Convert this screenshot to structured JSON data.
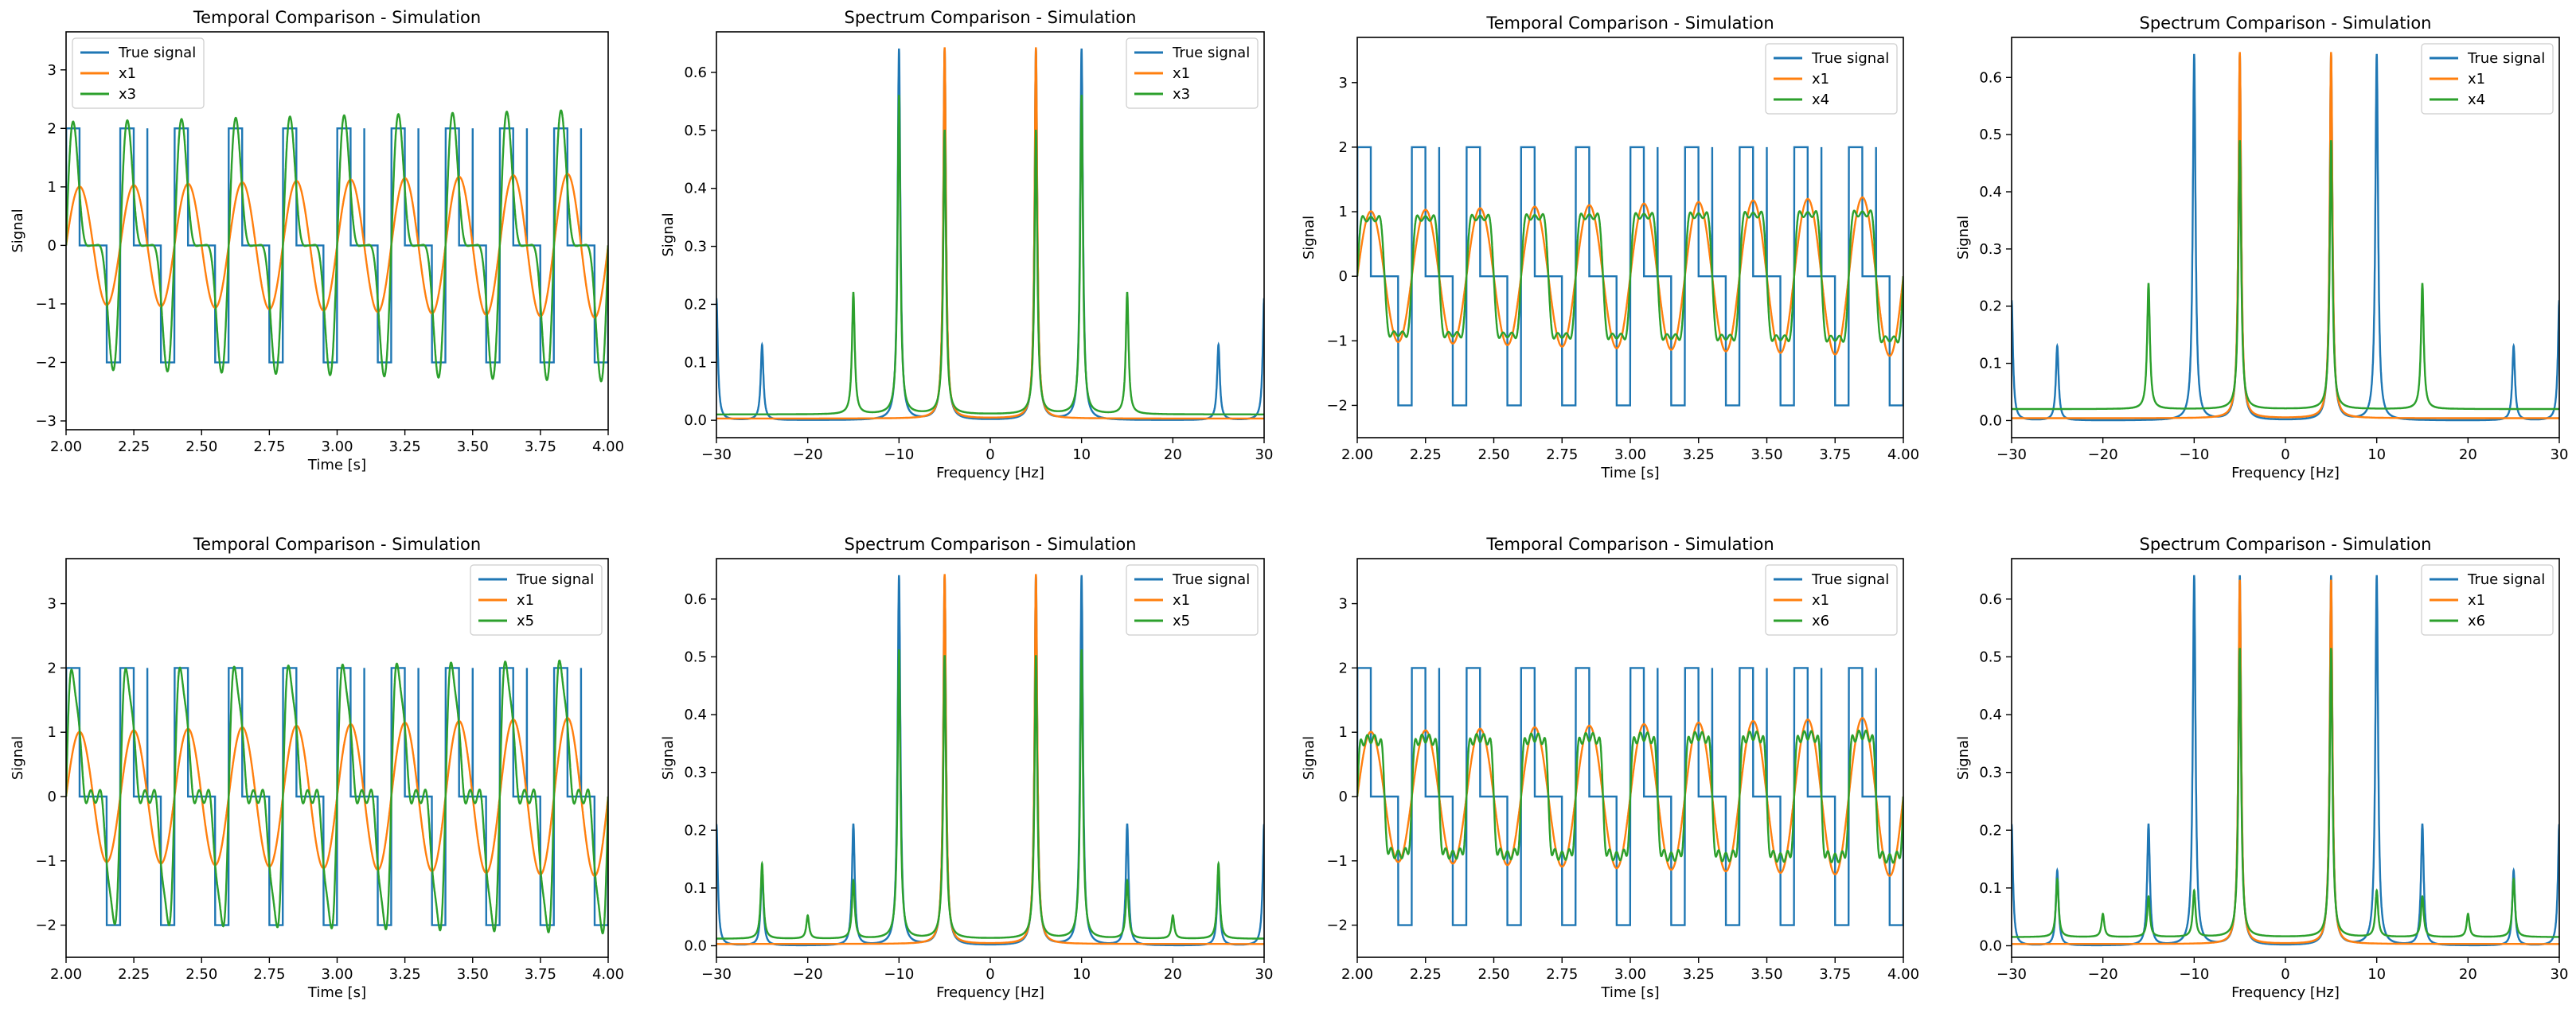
{
  "colors": {
    "true_signal": "#1f77b4",
    "x1": "#ff7f0e",
    "xn": "#2ca02c",
    "axis": "#000000"
  },
  "chart_data": [
    {
      "kind": "temporal",
      "type": "line",
      "title": "Temporal Comparison - Simulation",
      "xlabel": "Time [s]",
      "ylabel": "Signal",
      "xlim": [
        2.0,
        4.0
      ],
      "ylim": [
        -3.15,
        3.65
      ],
      "xticks": [
        "2.00",
        "2.25",
        "2.50",
        "2.75",
        "3.00",
        "3.25",
        "3.50",
        "3.75",
        "4.00"
      ],
      "yticks": [
        "−3",
        "−2",
        "−1",
        "0",
        "1",
        "2",
        "3"
      ],
      "legend": [
        "True signal",
        "x1",
        "x3"
      ],
      "legend_loc": "upper left",
      "series": [
        {
          "name": "True signal",
          "model": "stair",
          "freqs_hz": [
            5,
            10
          ],
          "amplitude": 2
        },
        {
          "name": "x1",
          "model": "harmonics",
          "freqs_hz": [
            5
          ],
          "amps": [
            1.0
          ],
          "growth_per_s": 0.12
        },
        {
          "name": "x3",
          "model": "harmonics",
          "freqs_hz": [
            5,
            10,
            15
          ],
          "amps": [
            1.2,
            1.05,
            0.3
          ],
          "growth_per_s": 0.05
        }
      ]
    },
    {
      "kind": "spectrum",
      "type": "line",
      "title": "Spectrum Comparison - Simulation",
      "xlabel": "Frequency [Hz]",
      "ylabel": "Signal",
      "xlim": [
        -30,
        30
      ],
      "ylim": [
        -0.03,
        0.67
      ],
      "xticks": [
        "−30",
        "−20",
        "−10",
        "0",
        "10",
        "20",
        "30"
      ],
      "yticks": [
        "0.0",
        "0.1",
        "0.2",
        "0.3",
        "0.4",
        "0.5",
        "0.6"
      ],
      "legend": [
        "True signal",
        "x1",
        "x3"
      ],
      "legend_loc": "upper right",
      "series": [
        {
          "name": "True signal",
          "peaks": [
            [
              -30,
              0.21
            ],
            [
              -25,
              0.13
            ],
            [
              -10,
              0.64
            ],
            [
              -5,
              0.64
            ],
            [
              5,
              0.64
            ],
            [
              10,
              0.64
            ],
            [
              25,
              0.13
            ],
            [
              30,
              0.21
            ]
          ],
          "baseline": 0.0
        },
        {
          "name": "x1",
          "peaks": [
            [
              -5,
              0.64
            ],
            [
              5,
              0.64
            ]
          ],
          "baseline": 0.003
        },
        {
          "name": "x3",
          "peaks": [
            [
              -15,
              0.21
            ],
            [
              -10,
              0.55
            ],
            [
              -5,
              0.49
            ],
            [
              5,
              0.49
            ],
            [
              10,
              0.55
            ],
            [
              15,
              0.21
            ]
          ],
          "baseline": 0.01
        }
      ]
    },
    {
      "kind": "temporal",
      "type": "line",
      "title": "Temporal Comparison - Simulation",
      "xlabel": "Time [s]",
      "ylabel": "Signal",
      "xlim": [
        2.0,
        4.0
      ],
      "ylim": [
        -2.5,
        3.7
      ],
      "xticks": [
        "2.00",
        "2.25",
        "2.50",
        "2.75",
        "3.00",
        "3.25",
        "3.50",
        "3.75",
        "4.00"
      ],
      "yticks": [
        "−2",
        "−1",
        "0",
        "1",
        "2",
        "3"
      ],
      "legend": [
        "True signal",
        "x1",
        "x4"
      ],
      "legend_loc": "upper right",
      "series": [
        {
          "name": "True signal",
          "model": "stair",
          "freqs_hz": [
            5,
            10
          ],
          "amplitude": 2
        },
        {
          "name": "x1",
          "model": "harmonics",
          "freqs_hz": [
            5
          ],
          "amps": [
            1.0
          ],
          "growth_per_s": 0.12
        },
        {
          "name": "x4",
          "model": "harmonics",
          "freqs_hz": [
            5,
            15,
            25
          ],
          "amps": [
            1.1,
            0.3,
            0.12
          ],
          "growth_per_s": 0.05
        }
      ]
    },
    {
      "kind": "spectrum",
      "type": "line",
      "title": "Spectrum Comparison - Simulation",
      "xlabel": "Frequency [Hz]",
      "ylabel": "Signal",
      "xlim": [
        -30,
        30
      ],
      "ylim": [
        -0.03,
        0.67
      ],
      "xticks": [
        "−30",
        "−20",
        "−10",
        "0",
        "10",
        "20",
        "30"
      ],
      "yticks": [
        "0.0",
        "0.1",
        "0.2",
        "0.3",
        "0.4",
        "0.5",
        "0.6"
      ],
      "legend": [
        "True signal",
        "x1",
        "x4"
      ],
      "legend_loc": "upper right",
      "series": [
        {
          "name": "True signal",
          "peaks": [
            [
              -30,
              0.21
            ],
            [
              -25,
              0.13
            ],
            [
              -10,
              0.64
            ],
            [
              -5,
              0.64
            ],
            [
              5,
              0.64
            ],
            [
              10,
              0.64
            ],
            [
              25,
              0.13
            ],
            [
              30,
              0.21
            ]
          ],
          "baseline": 0.0
        },
        {
          "name": "x1",
          "peaks": [
            [
              -5,
              0.64
            ],
            [
              5,
              0.64
            ]
          ],
          "baseline": 0.004
        },
        {
          "name": "x4",
          "peaks": [
            [
              -15,
              0.22
            ],
            [
              -5,
              0.47
            ],
            [
              5,
              0.47
            ],
            [
              15,
              0.22
            ]
          ],
          "baseline": 0.02
        }
      ]
    },
    {
      "kind": "temporal",
      "type": "line",
      "title": "Temporal Comparison - Simulation",
      "xlabel": "Time [s]",
      "ylabel": "Signal",
      "xlim": [
        2.0,
        4.0
      ],
      "ylim": [
        -2.5,
        3.7
      ],
      "xticks": [
        "2.00",
        "2.25",
        "2.50",
        "2.75",
        "3.00",
        "3.25",
        "3.50",
        "3.75",
        "4.00"
      ],
      "yticks": [
        "−2",
        "−1",
        "0",
        "1",
        "2",
        "3"
      ],
      "legend": [
        "True signal",
        "x1",
        "x5"
      ],
      "legend_loc": "upper right",
      "series": [
        {
          "name": "True signal",
          "model": "stair",
          "freqs_hz": [
            5,
            10
          ],
          "amplitude": 2
        },
        {
          "name": "x1",
          "model": "harmonics",
          "freqs_hz": [
            5
          ],
          "amps": [
            1.0
          ],
          "growth_per_s": 0.12
        },
        {
          "name": "x5",
          "model": "harmonics",
          "freqs_hz": [
            5,
            10,
            15,
            20,
            25
          ],
          "amps": [
            1.15,
            1.0,
            0.3,
            0.1,
            0.18
          ],
          "growth_per_s": 0.04
        }
      ]
    },
    {
      "kind": "spectrum",
      "type": "line",
      "title": "Spectrum Comparison - Simulation",
      "xlabel": "Frequency [Hz]",
      "ylabel": "Signal",
      "xlim": [
        -30,
        30
      ],
      "ylim": [
        -0.02,
        0.67
      ],
      "xticks": [
        "−30",
        "−20",
        "−10",
        "0",
        "10",
        "20",
        "30"
      ],
      "yticks": [
        "0.0",
        "0.1",
        "0.2",
        "0.3",
        "0.4",
        "0.5",
        "0.6"
      ],
      "legend": [
        "True signal",
        "x1",
        "x5"
      ],
      "legend_loc": "upper right",
      "series": [
        {
          "name": "True signal",
          "peaks": [
            [
              -30,
              0.21
            ],
            [
              -25,
              0.13
            ],
            [
              -15,
              0.21
            ],
            [
              -10,
              0.64
            ],
            [
              -5,
              0.64
            ],
            [
              5,
              0.64
            ],
            [
              10,
              0.64
            ],
            [
              15,
              0.21
            ],
            [
              25,
              0.13
            ],
            [
              30,
              0.21
            ]
          ],
          "baseline": 0.0
        },
        {
          "name": "x1",
          "peaks": [
            [
              -5,
              0.64
            ],
            [
              5,
              0.64
            ]
          ],
          "baseline": 0.003
        },
        {
          "name": "x5",
          "peaks": [
            [
              -25,
              0.13
            ],
            [
              -20,
              0.04
            ],
            [
              -15,
              0.1
            ],
            [
              -10,
              0.5
            ],
            [
              -5,
              0.49
            ],
            [
              5,
              0.49
            ],
            [
              10,
              0.5
            ],
            [
              15,
              0.1
            ],
            [
              20,
              0.04
            ],
            [
              25,
              0.13
            ]
          ],
          "baseline": 0.012
        }
      ]
    },
    {
      "kind": "temporal",
      "type": "line",
      "title": "Temporal Comparison - Simulation",
      "xlabel": "Time [s]",
      "ylabel": "Signal",
      "xlim": [
        2.0,
        4.0
      ],
      "ylim": [
        -2.5,
        3.7
      ],
      "xticks": [
        "2.00",
        "2.25",
        "2.50",
        "2.75",
        "3.00",
        "3.25",
        "3.50",
        "3.75",
        "4.00"
      ],
      "yticks": [
        "−2",
        "−1",
        "0",
        "1",
        "2",
        "3"
      ],
      "legend": [
        "True signal",
        "x1",
        "x6"
      ],
      "legend_loc": "upper right",
      "series": [
        {
          "name": "True signal",
          "model": "stair",
          "freqs_hz": [
            5,
            10
          ],
          "amplitude": 2
        },
        {
          "name": "x1",
          "model": "harmonics",
          "freqs_hz": [
            5
          ],
          "amps": [
            1.0
          ],
          "growth_per_s": 0.12
        },
        {
          "name": "x6",
          "model": "harmonics",
          "freqs_hz": [
            5,
            15,
            25,
            35
          ],
          "amps": [
            1.1,
            0.3,
            0.15,
            0.12
          ],
          "growth_per_s": 0.04
        }
      ]
    },
    {
      "kind": "spectrum",
      "type": "line",
      "title": "Spectrum Comparison - Simulation",
      "xlabel": "Frequency [Hz]",
      "ylabel": "Signal",
      "xlim": [
        -30,
        30
      ],
      "ylim": [
        -0.02,
        0.67
      ],
      "xticks": [
        "−30",
        "−20",
        "−10",
        "0",
        "10",
        "20",
        "30"
      ],
      "yticks": [
        "0.0",
        "0.1",
        "0.2",
        "0.3",
        "0.4",
        "0.5",
        "0.6"
      ],
      "legend": [
        "True signal",
        "x1",
        "x6"
      ],
      "legend_loc": "upper right",
      "series": [
        {
          "name": "True signal",
          "peaks": [
            [
              -30,
              0.21
            ],
            [
              -25,
              0.13
            ],
            [
              -15,
              0.21
            ],
            [
              -10,
              0.64
            ],
            [
              -5,
              0.64
            ],
            [
              5,
              0.64
            ],
            [
              10,
              0.64
            ],
            [
              15,
              0.21
            ],
            [
              25,
              0.13
            ],
            [
              30,
              0.21
            ]
          ],
          "baseline": 0.0
        },
        {
          "name": "x1",
          "peaks": [
            [
              -5,
              0.63
            ],
            [
              5,
              0.63
            ]
          ],
          "baseline": 0.003
        },
        {
          "name": "x6",
          "peaks": [
            [
              -25,
              0.1
            ],
            [
              -20,
              0.04
            ],
            [
              -15,
              0.07
            ],
            [
              -10,
              0.08
            ],
            [
              -5,
              0.5
            ],
            [
              5,
              0.5
            ],
            [
              10,
              0.08
            ],
            [
              15,
              0.07
            ],
            [
              20,
              0.04
            ],
            [
              25,
              0.1
            ]
          ],
          "baseline": 0.015
        }
      ]
    }
  ]
}
